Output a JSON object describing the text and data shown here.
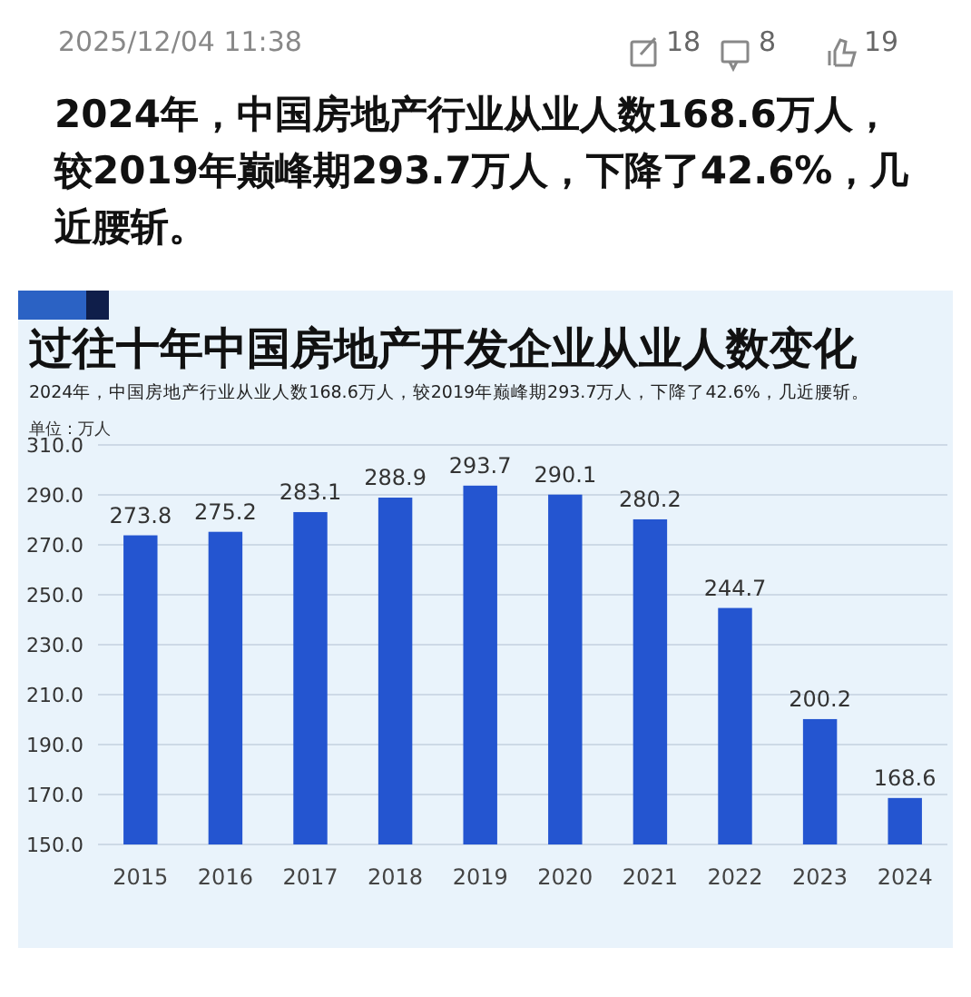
{
  "chart_data": {
    "type": "bar",
    "title": "过往十年中国房地产开发企业从业人数变化",
    "subtitle": "2024年，中国房地产行业从业人数168.6万人，较2019年巅峰期293.7万人，下降了42.6%，几近腰斩。",
    "ylabel": "单位：万人",
    "annotations": [
      "2025/12/04 11:38",
      "18",
      "8",
      "19",
      "2024年，中国房地产行业从业人数168.6万人，较2019年巅峰期293.7万人，下降了42.6%，几近腰斩。"
    ],
    "categories": [
      "2015",
      "2016",
      "2017",
      "2018",
      "2019",
      "2020",
      "2021",
      "2022",
      "2023",
      "2024"
    ],
    "values": [
      273.8,
      275.2,
      283.1,
      288.9,
      293.7,
      290.1,
      280.2,
      244.7,
      200.2,
      168.6
    ],
    "color": "#2455d0",
    "ylim": [
      150,
      310
    ],
    "yticks": [
      {
        "value": 150,
        "label": "150.0"
      },
      {
        "value": 170,
        "label": "170.0"
      },
      {
        "value": 190,
        "label": "190.0"
      },
      {
        "value": 210,
        "label": "210.0"
      },
      {
        "value": 230,
        "label": "230.0"
      },
      {
        "value": 250,
        "label": "250.0"
      },
      {
        "value": 270,
        "label": "270.0"
      },
      {
        "value": 290,
        "label": "290.0"
      },
      {
        "value": 310,
        "label": "310.0"
      }
    ],
    "grid": "y",
    "data_labels": true
  }
}
